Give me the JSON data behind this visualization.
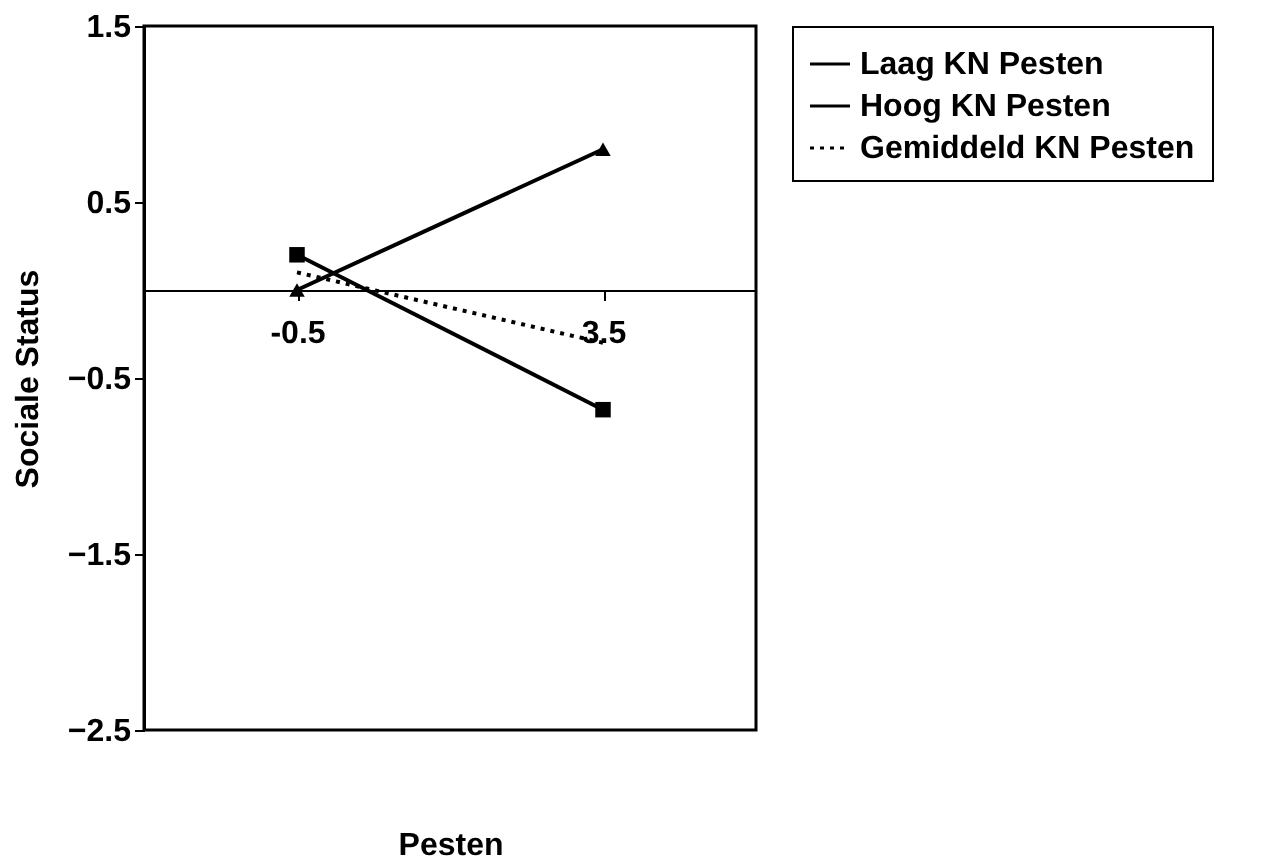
{
  "chart_data": {
    "type": "line",
    "xlabel": "Pesten",
    "ylabel": "Sociale Status",
    "categories": [
      "-0.5",
      "3.5"
    ],
    "ylim": [
      -2.5,
      1.5
    ],
    "yticks": [
      -2.5,
      -1.5,
      -0.5,
      0.5,
      1.5
    ],
    "grid": false,
    "legend": "right",
    "series": [
      {
        "name": "Laag KN Pesten",
        "color": "#000000",
        "values": [
          0.2,
          -0.68
        ],
        "marker": "square",
        "line_style": "solid"
      },
      {
        "name": "Hoog KN Pesten",
        "color": "#000000",
        "values": [
          0.0,
          0.8
        ],
        "marker": "triangle",
        "line_style": "solid"
      },
      {
        "name": "Gemiddeld KN Pesten",
        "color": "#000000",
        "values": [
          0.1,
          -0.3
        ],
        "marker": "none",
        "line_style": "dotted"
      }
    ]
  }
}
